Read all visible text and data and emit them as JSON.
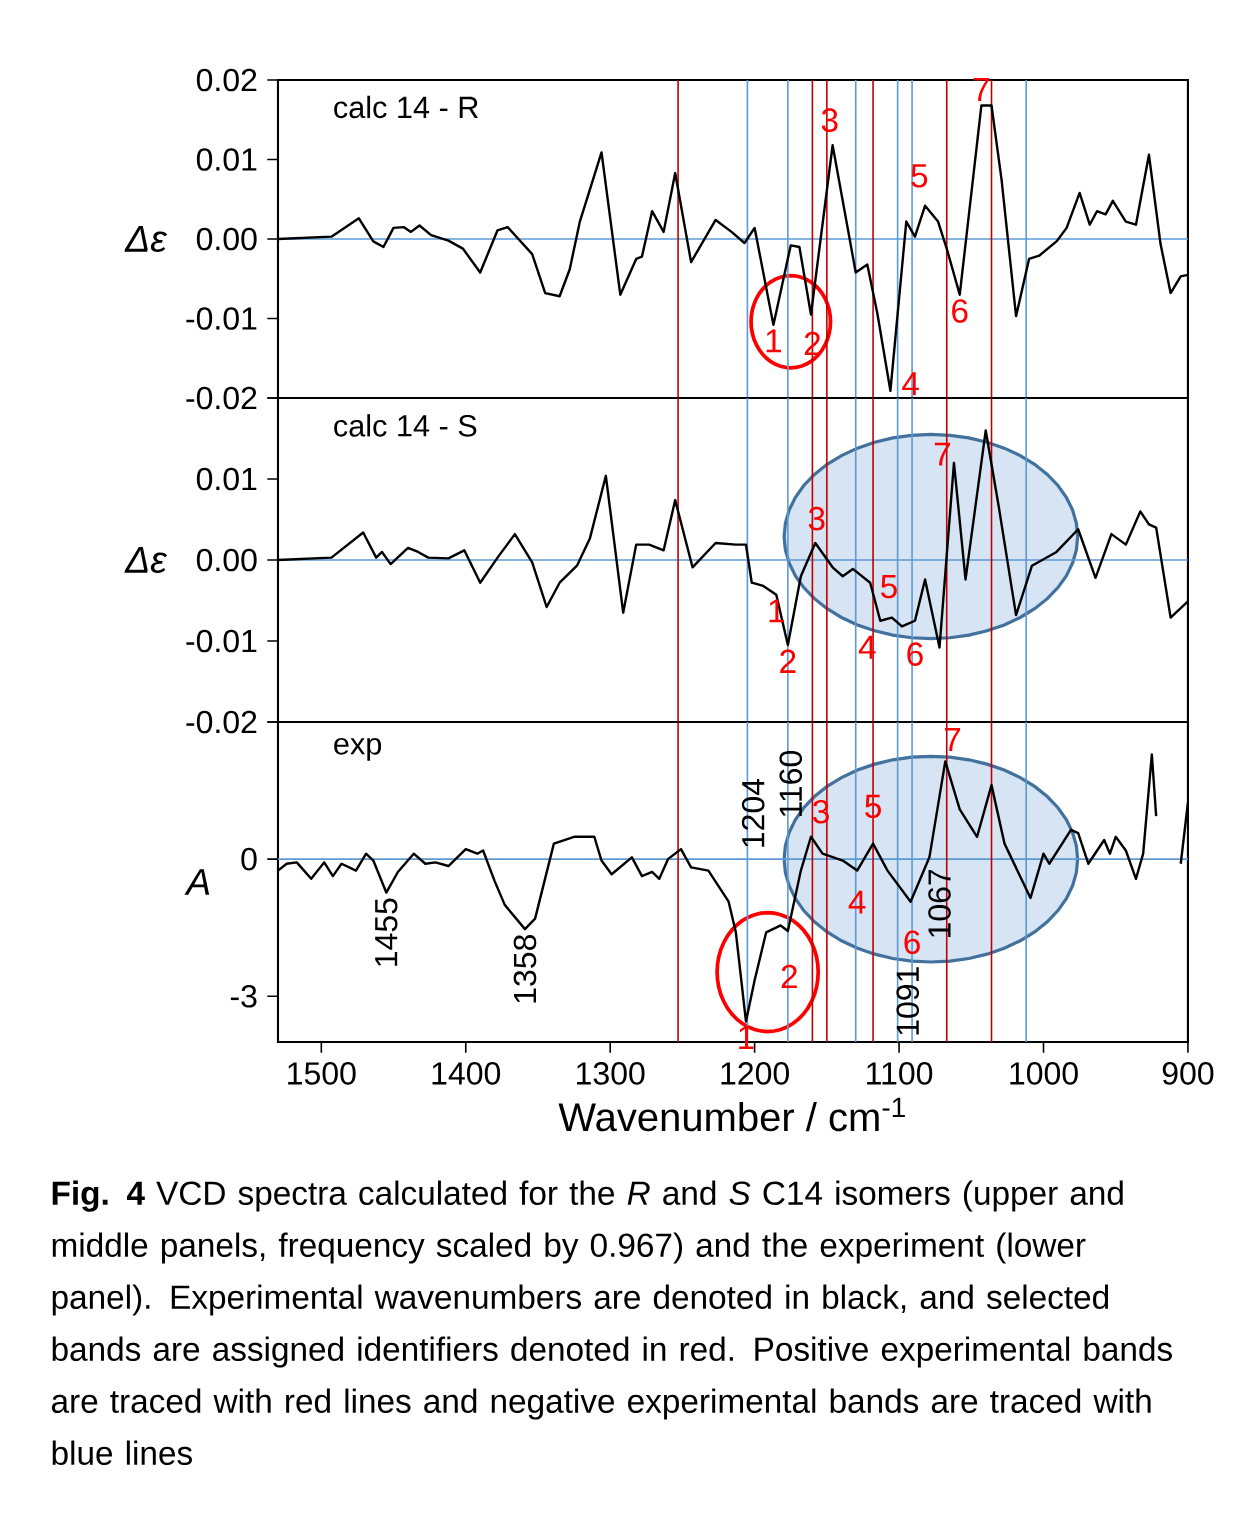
{
  "chart_data": [
    {
      "type": "line",
      "title": "calc 14 - R",
      "ylabel": "Δε",
      "xlim": [
        1530,
        900
      ],
      "ylim": [
        -0.02,
        0.02
      ],
      "tick_labels": "y",
      "marker": "none",
      "line_style": "solid",
      "yticks": [
        0.02,
        0.01,
        {
          "value": 0,
          "label": "0.00"
        },
        -0.01,
        -0.02
      ],
      "series": [
        {
          "color": "#000000",
          "x": [
            1530,
            1493,
            1474,
            1464,
            1457,
            1450,
            1443,
            1438,
            1432,
            1424,
            1412,
            1402,
            1390,
            1378,
            1371,
            1364,
            1354,
            1345,
            1335,
            1328,
            1321,
            1306,
            1293,
            1282,
            1278,
            1271,
            1263,
            1255,
            1244,
            1227,
            1216,
            1207,
            1200,
            1187,
            1175,
            1169,
            1161,
            1146,
            1130,
            1122,
            1115,
            1106,
            1095,
            1089,
            1082,
            1073,
            1067,
            1058,
            1043,
            1036,
            1029,
            1019,
            1010,
            1003,
            991,
            984,
            975,
            968,
            963,
            957,
            952,
            943,
            936,
            927,
            919,
            912,
            905,
            900
          ],
          "values": [
            0,
            0.0003,
            0.0026,
            -0.0003,
            -0.001,
            0.0014,
            0.0015,
            0.0009,
            0.0017,
            0.0005,
            -0.0002,
            -0.0012,
            -0.0042,
            0.0011,
            0.0015,
            0.0001,
            -0.0019,
            -0.0068,
            -0.0072,
            -0.0038,
            0.0022,
            0.0109,
            -0.007,
            -0.0025,
            -0.0022,
            0.0035,
            0.0009,
            0.0083,
            -0.0029,
            0.0024,
            0.0009,
            -0.0005,
            0.0014,
            -0.0108,
            -0.0008,
            -0.001,
            -0.0095,
            0.0118,
            -0.0042,
            -0.0032,
            -0.0094,
            -0.0191,
            0.0022,
            0.0003,
            0.0042,
            0.0022,
            -0.0012,
            -0.007,
            0.0168,
            0.0168,
            0.0074,
            -0.0097,
            -0.0025,
            -0.0021,
            -0.0003,
            0.0014,
            0.0058,
            0.0018,
            0.0035,
            0.0031,
            0.0048,
            0.0022,
            0.0018,
            0.0106,
            -0.0006,
            -0.0068,
            -0.0047,
            -0.0045
          ]
        }
      ],
      "ref_lines": [
        {
          "axis": "y",
          "value": 0,
          "color": "#5b9bd5"
        },
        {
          "axis": "x",
          "value": 1253,
          "color": "#c00000"
        },
        {
          "axis": "x",
          "value": 1160,
          "color": "#c00000"
        },
        {
          "axis": "x",
          "value": 1150,
          "color": "#c00000"
        },
        {
          "axis": "x",
          "value": 1118,
          "color": "#c00000"
        },
        {
          "axis": "x",
          "value": 1067,
          "color": "#c00000"
        },
        {
          "axis": "x",
          "value": 1036,
          "color": "#c00000"
        },
        {
          "axis": "x",
          "value": 1205,
          "color": "#5b9bd5"
        },
        {
          "axis": "x",
          "value": 1177,
          "color": "#5b9bd5"
        },
        {
          "axis": "x",
          "value": 1130,
          "color": "#5b9bd5"
        },
        {
          "axis": "x",
          "value": 1101,
          "color": "#5b9bd5"
        },
        {
          "axis": "x",
          "value": 1091,
          "color": "#5b9bd5"
        },
        {
          "axis": "x",
          "value": 1012,
          "color": "#5b9bd5"
        }
      ],
      "annotations": [
        {
          "text": "1",
          "x": 1187,
          "y": -0.0108
        },
        {
          "text": "2",
          "x": 1160,
          "y": -0.0111
        },
        {
          "text": "3",
          "x": 1148,
          "y": 0.0129
        },
        {
          "text": "4",
          "x": 1092,
          "y": -0.0162
        },
        {
          "text": "5",
          "x": 1086,
          "y": 0.0059
        },
        {
          "text": "6",
          "x": 1058,
          "y": -0.007
        },
        {
          "text": "7",
          "x": 1043,
          "y": 0.0168
        }
      ]
    },
    {
      "type": "line",
      "title": "calc 14 - S",
      "ylabel": "Δε",
      "xlim": [
        1530,
        900
      ],
      "ylim": [
        -0.02,
        0.02
      ],
      "tick_labels": "y",
      "marker": "none",
      "line_style": "solid",
      "yticks": [
        {
          "value": 0.02,
          "label": null
        },
        0.01,
        {
          "value": 0,
          "label": "0.00"
        },
        -0.01,
        -0.02
      ],
      "series": [
        {
          "color": "#000000",
          "x": [
            1530,
            1493,
            1471,
            1462,
            1458,
            1452,
            1440,
            1433,
            1426,
            1412,
            1401,
            1390,
            1378,
            1366,
            1354,
            1344,
            1335,
            1323,
            1314,
            1303,
            1291,
            1282,
            1273,
            1263,
            1255,
            1243,
            1227,
            1213,
            1206,
            1202,
            1194,
            1185,
            1177,
            1168,
            1158,
            1146,
            1139,
            1132,
            1120,
            1113,
            1105,
            1098,
            1089,
            1082,
            1072,
            1062,
            1054,
            1040,
            1031,
            1019,
            1008,
            991,
            976,
            964,
            953,
            943,
            933,
            927,
            922,
            912,
            900
          ],
          "values": [
            0,
            0.0003,
            0.0034,
            0.0003,
            0.001,
            -0.0005,
            0.0015,
            0.001,
            0.0003,
            0.0002,
            0.0012,
            -0.0028,
            0.0003,
            0.0032,
            -0.0003,
            -0.0058,
            -0.0028,
            -0.0007,
            0.0027,
            0.0104,
            -0.0065,
            0.0019,
            0.0019,
            0.0012,
            0.0074,
            -0.0009,
            0.0021,
            0.0019,
            0.0019,
            -0.0028,
            -0.0032,
            -0.0043,
            -0.0105,
            -0.002,
            0.0021,
            -0.0009,
            -0.002,
            -0.0011,
            -0.0028,
            -0.0075,
            -0.0071,
            -0.0082,
            -0.0075,
            -0.0024,
            -0.0108,
            0.012,
            -0.0024,
            0.016,
            0.0066,
            -0.0068,
            -0.0007,
            0.001,
            0.0038,
            -0.0022,
            0.0032,
            0.0019,
            0.006,
            0.0044,
            0.004,
            -0.0071,
            -0.0051
          ]
        }
      ],
      "ref_lines": [
        {
          "axis": "y",
          "value": 0,
          "color": "#5b9bd5"
        },
        {
          "axis": "x",
          "value": 1253,
          "color": "#c00000"
        },
        {
          "axis": "x",
          "value": 1160,
          "color": "#c00000"
        },
        {
          "axis": "x",
          "value": 1150,
          "color": "#c00000"
        },
        {
          "axis": "x",
          "value": 1118,
          "color": "#c00000"
        },
        {
          "axis": "x",
          "value": 1067,
          "color": "#c00000"
        },
        {
          "axis": "x",
          "value": 1036,
          "color": "#c00000"
        },
        {
          "axis": "x",
          "value": 1205,
          "color": "#5b9bd5"
        },
        {
          "axis": "x",
          "value": 1177,
          "color": "#5b9bd5"
        },
        {
          "axis": "x",
          "value": 1130,
          "color": "#5b9bd5"
        },
        {
          "axis": "x",
          "value": 1101,
          "color": "#5b9bd5"
        },
        {
          "axis": "x",
          "value": 1091,
          "color": "#5b9bd5"
        },
        {
          "axis": "x",
          "value": 1012,
          "color": "#5b9bd5"
        }
      ],
      "annotations": [
        {
          "text": "1",
          "x": 1185,
          "y": -0.0043
        },
        {
          "text": "2",
          "x": 1177,
          "y": -0.0105
        },
        {
          "text": "3",
          "x": 1157,
          "y": 0.0031
        },
        {
          "text": "4",
          "x": 1122,
          "y": -0.0088
        },
        {
          "text": "5",
          "x": 1107,
          "y": -0.0013
        },
        {
          "text": "6",
          "x": 1089,
          "y": -0.0096
        },
        {
          "text": "7",
          "x": 1070,
          "y": 0.0111
        }
      ]
    },
    {
      "type": "line",
      "title": "exp",
      "ylabel": "A",
      "xlabel": "Wavenumber / cm$^{-1}$",
      "xlim": [
        1530,
        900
      ],
      "ylim": [
        -4,
        3
      ],
      "marker": "none",
      "line_style": "solid",
      "xticks": [
        1500,
        1400,
        1300,
        1200,
        1100,
        1000,
        900
      ],
      "yticks": [
        {
          "value": 3,
          "label": null
        },
        0,
        -3
      ],
      "series": [
        {
          "color": "#000000",
          "x": [
            1530,
            1524,
            1517,
            1507,
            1498,
            1492,
            1486,
            1476,
            1469,
            1464,
            1455,
            1447,
            1436,
            1428,
            1421,
            1412,
            1400,
            1392,
            1388,
            1380,
            1373,
            1359,
            1352,
            1339,
            1325,
            1311,
            1306,
            1299,
            1285,
            1278,
            1271,
            1266,
            1260,
            1251,
            1244,
            1232,
            1218,
            1213,
            1206,
            1200,
            1192,
            1182,
            1177,
            1168,
            1161,
            1153,
            1139,
            1129,
            1118,
            1108,
            1092,
            1079,
            1068,
            1058,
            1046,
            1036,
            1027,
            1009,
            1000,
            996,
            981,
            976,
            969,
            958,
            954,
            950,
            943,
            936,
            931,
            925,
            922,
            917,
            910,
            905,
            900
          ],
          "values": [
            -0.25,
            -0.1,
            -0.07,
            -0.43,
            -0.07,
            -0.37,
            -0.1,
            -0.25,
            0.12,
            -0.03,
            -0.73,
            -0.28,
            0.12,
            -0.1,
            -0.07,
            -0.15,
            0.22,
            0.12,
            0.19,
            -0.48,
            -1.0,
            -1.53,
            -1.3,
            0.34,
            0.49,
            0.49,
            -0.03,
            -0.33,
            0.04,
            -0.37,
            -0.28,
            -0.43,
            0,
            0.22,
            -0.18,
            -0.25,
            -0.93,
            -1.6,
            -3.55,
            -2.65,
            -1.6,
            -1.45,
            -1.57,
            -0.25,
            0.49,
            0.12,
            -0.03,
            -0.25,
            0.34,
            -0.25,
            -0.93,
            0.04,
            2.14,
            1.09,
            0.49,
            1.62,
            0.34,
            -0.85,
            0.12,
            -0.1,
            0.64,
            0.57,
            -0.1,
            0.42,
            0.12,
            0.49,
            0.19,
            -0.43,
            0.12,
            2.29,
            0.94,
            null,
            null,
            -0.1,
            1.24
          ]
        }
      ],
      "ref_lines": [
        {
          "axis": "y",
          "value": 0,
          "color": "#5b9bd5"
        },
        {
          "axis": "x",
          "value": 1253,
          "color": "#c00000"
        },
        {
          "axis": "x",
          "value": 1160,
          "color": "#c00000"
        },
        {
          "axis": "x",
          "value": 1150,
          "color": "#c00000"
        },
        {
          "axis": "x",
          "value": 1118,
          "color": "#c00000"
        },
        {
          "axis": "x",
          "value": 1067,
          "color": "#c00000"
        },
        {
          "axis": "x",
          "value": 1036,
          "color": "#c00000"
        },
        {
          "axis": "x",
          "value": 1205,
          "color": "#5b9bd5"
        },
        {
          "axis": "x",
          "value": 1177,
          "color": "#5b9bd5"
        },
        {
          "axis": "x",
          "value": 1130,
          "color": "#5b9bd5"
        },
        {
          "axis": "x",
          "value": 1101,
          "color": "#5b9bd5"
        },
        {
          "axis": "x",
          "value": 1091,
          "color": "#5b9bd5"
        },
        {
          "axis": "x",
          "value": 1012,
          "color": "#5b9bd5"
        }
      ],
      "annotations": [
        {
          "text": "1455",
          "x": 1455,
          "y": -0.73
        },
        {
          "text": "1358",
          "x": 1359,
          "y": -1.53
        },
        {
          "text": "1204",
          "x": 1201,
          "y": 0.12
        },
        {
          "text": "1160",
          "x": 1175,
          "y": 0.79
        },
        {
          "text": "1067",
          "x": 1072,
          "y": -0.1
        },
        {
          "text": "1091",
          "x": 1094,
          "y": -2.23
        },
        {
          "text": "1",
          "x": 1206,
          "y": -3.55
        },
        {
          "text": "2",
          "x": 1176,
          "y": -2.21
        },
        {
          "text": "3",
          "x": 1154,
          "y": 0.68
        },
        {
          "text": "4",
          "x": 1129,
          "y": -0.59
        },
        {
          "text": "5",
          "x": 1118,
          "y": 0.8
        },
        {
          "text": "6",
          "x": 1091,
          "y": -1.46
        },
        {
          "text": "7",
          "x": 1063,
          "y": 2.27
        },
        "**Fig. 4** VCD spectra calculated for the *R* and *S* C14 isomers (upper and middle panels, frequency scaled by 0.967) and the experiment (lower panel). Experimental wavenumbers are denoted in black, and selected bands are assigned identifiers denoted in red. Positive experimental bands are traced with red lines and negative experimental bands are traced with blue lines"
      ]
    }
  ]
}
